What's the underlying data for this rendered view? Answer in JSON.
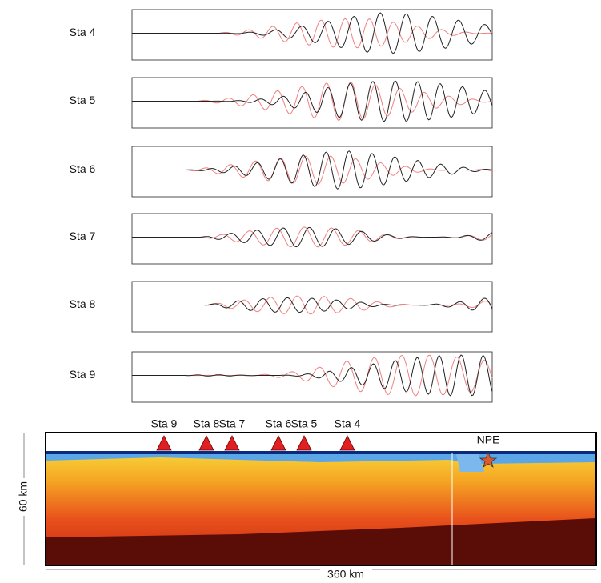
{
  "traces": [
    {
      "label": "Sta 4"
    },
    {
      "label": "Sta 5"
    },
    {
      "label": "Sta 6"
    },
    {
      "label": "Sta 7"
    },
    {
      "label": "Sta 8"
    },
    {
      "label": "Sta 9"
    }
  ],
  "section": {
    "stations": [
      "Sta 9",
      "Sta 8",
      "Sta 7",
      "Sta 6",
      "Sta 5",
      "Sta 4"
    ],
    "source": "NPE",
    "depth_label": "60 km",
    "distance_label": "360 km"
  }
}
